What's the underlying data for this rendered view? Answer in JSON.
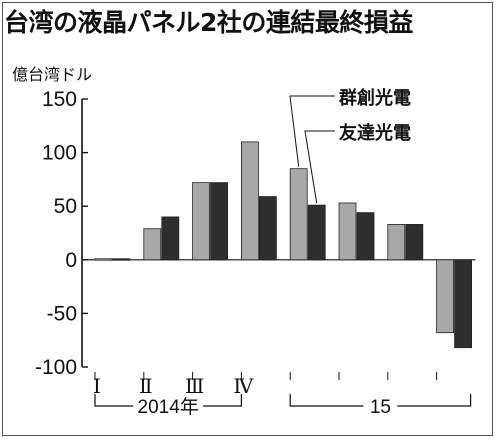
{
  "chart_data": {
    "type": "bar",
    "title": "台湾の液晶パネル2社の連結最終損益",
    "unit_label": "億台湾ドル",
    "ylim": [
      -100,
      150
    ],
    "yticks": [
      150,
      100,
      50,
      0,
      -50,
      -100
    ],
    "categories": [
      "Ⅰ",
      "Ⅱ",
      "Ⅲ",
      "Ⅳ",
      "",
      "",
      "",
      ""
    ],
    "year_groups": [
      {
        "label": "2014年",
        "from": 0,
        "to": 3
      },
      {
        "label": "15",
        "from": 4,
        "to": 7
      }
    ],
    "series": [
      {
        "name": "群創光電",
        "color": "#a8a8a8",
        "values": [
          1,
          29,
          72,
          110,
          85,
          53,
          33,
          -68
        ]
      },
      {
        "name": "友達光電",
        "color": "#2e2e2e",
        "values": [
          1,
          40,
          72,
          59,
          51,
          44,
          33,
          -82
        ]
      }
    ],
    "grid": false
  }
}
